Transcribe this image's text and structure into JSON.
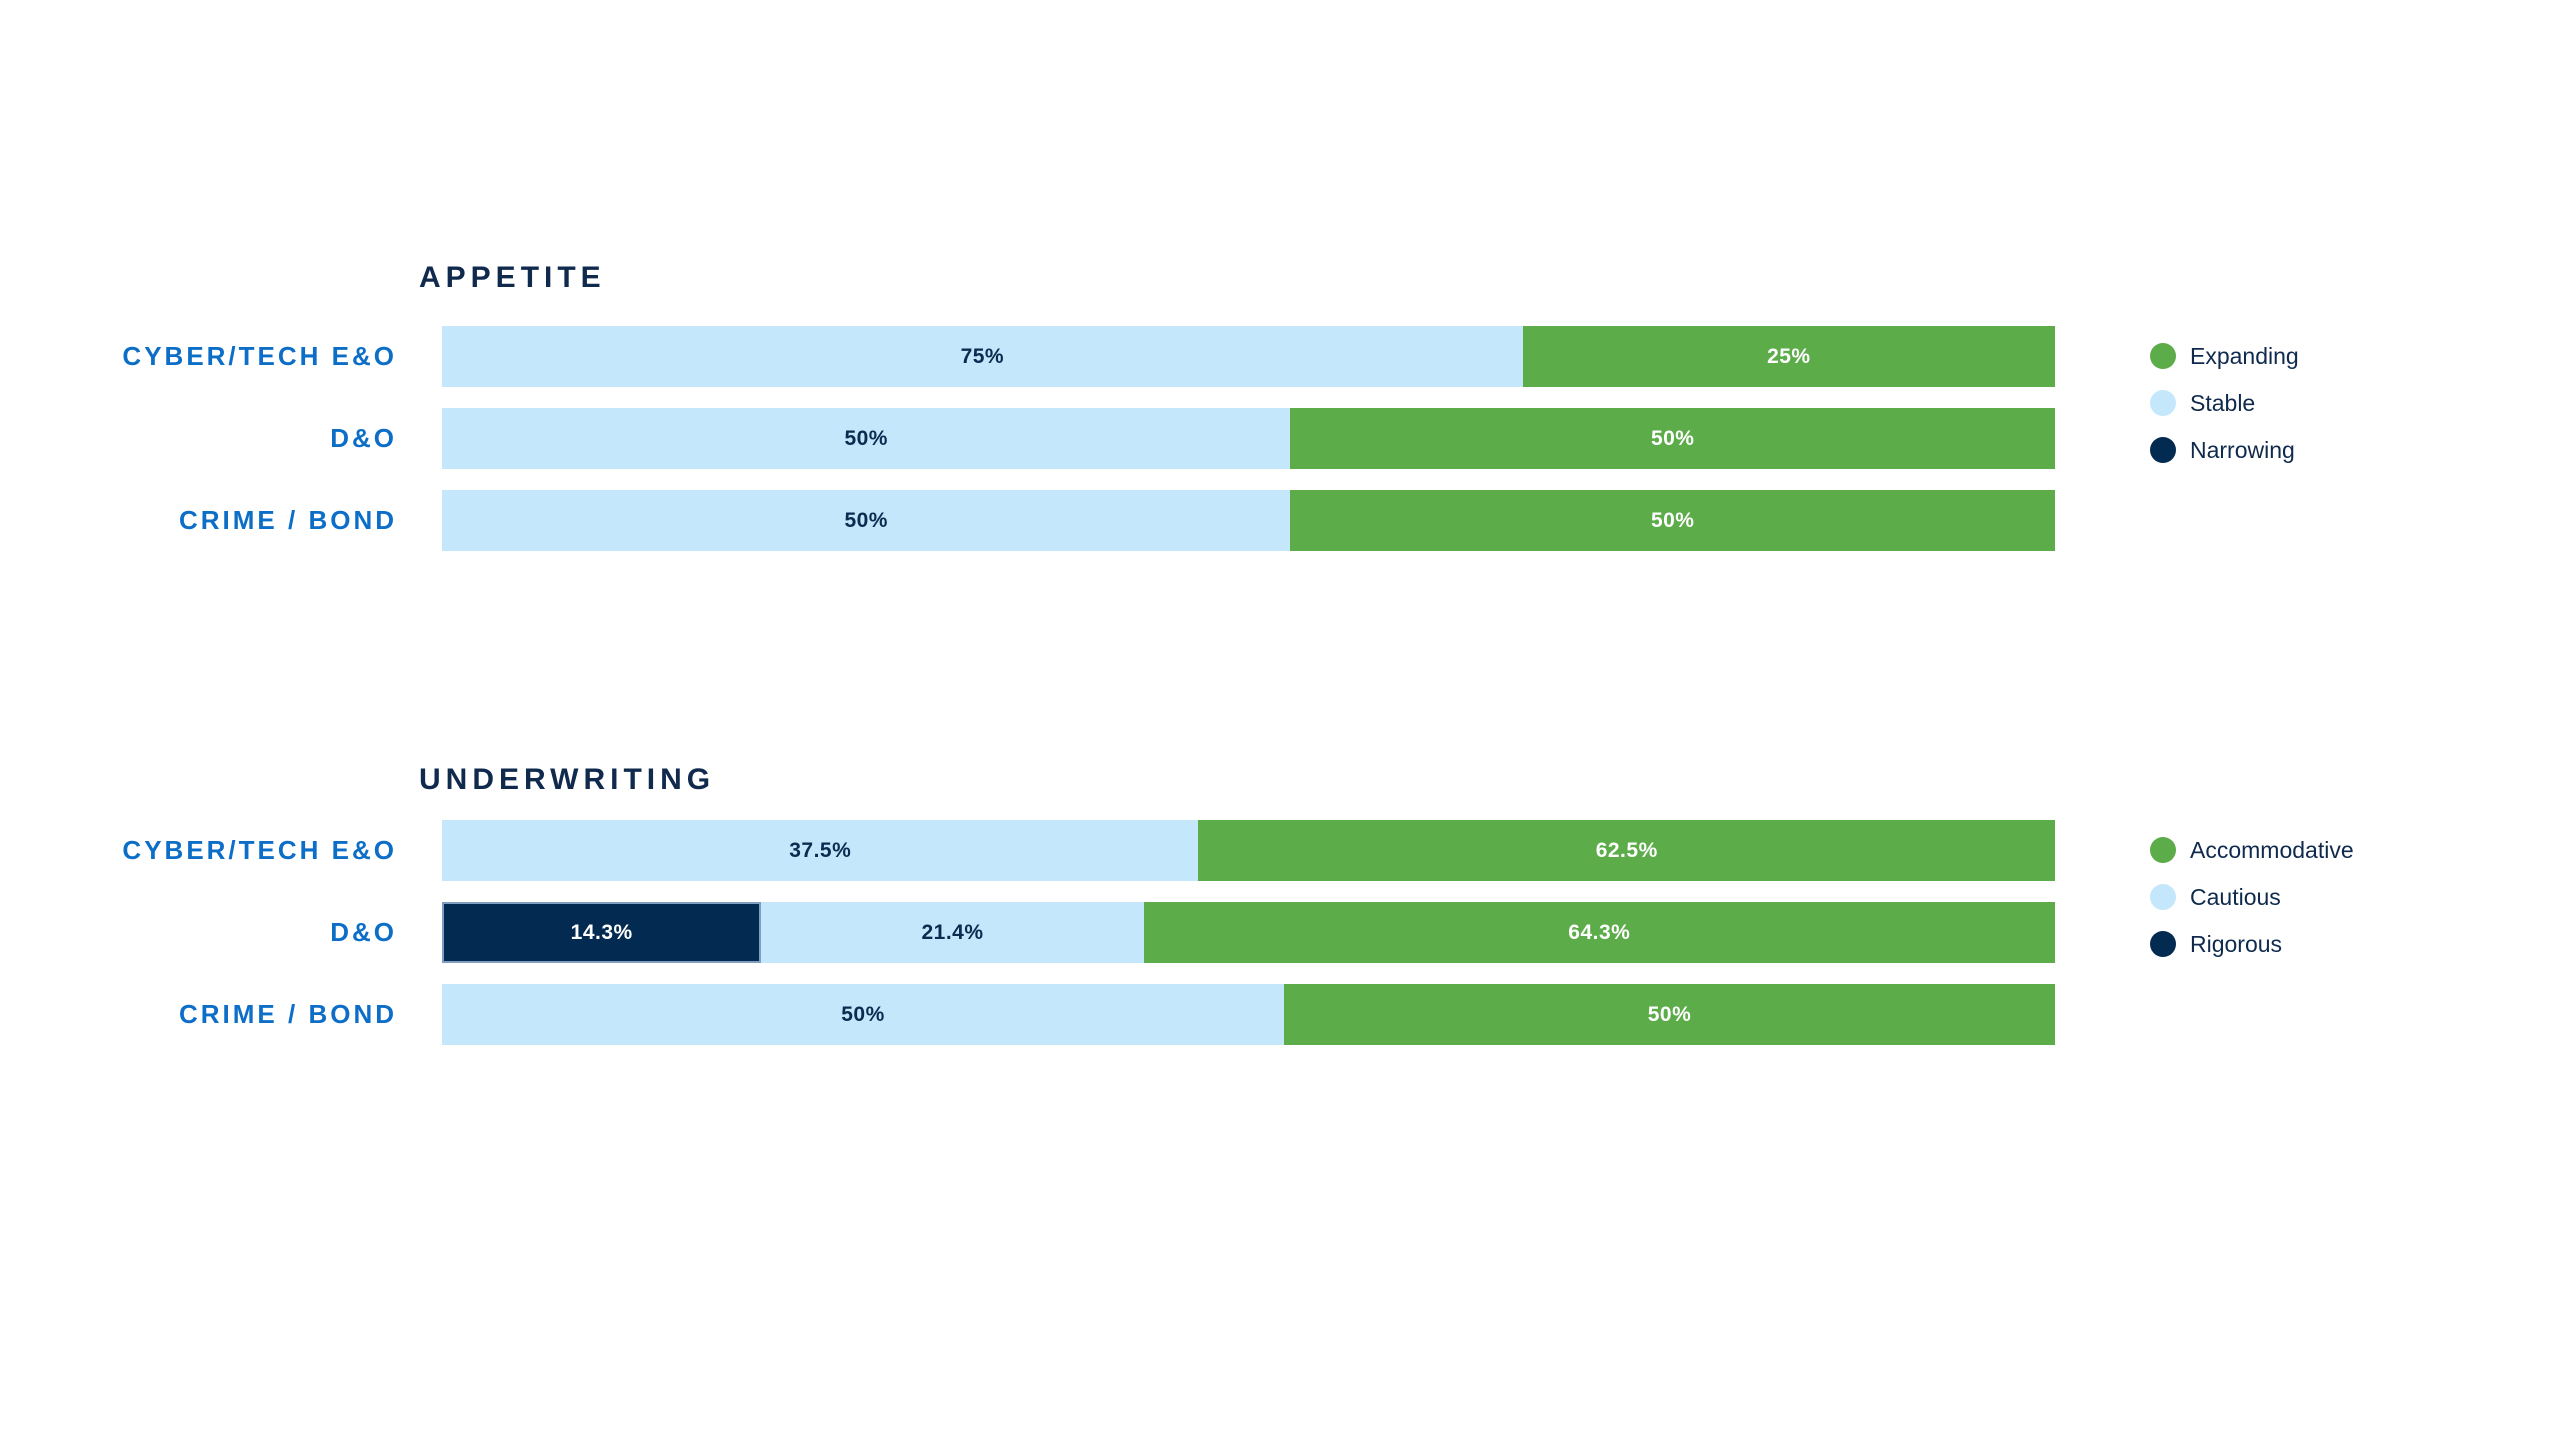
{
  "page": {
    "background": "#FFFFFF"
  },
  "colors": {
    "green": "#5CAC4A",
    "light_blue": "#C5E7FB",
    "navy": "#032A50",
    "title_text": "#102A4D",
    "category_text": "#0D6EC8",
    "legend_text": "#0F2A4D",
    "label_on_light": "#0B2B50",
    "label_on_dark": "#FFFFFF"
  },
  "chart_data": [
    {
      "type": "bar",
      "orientation": "horizontal",
      "stacked": true,
      "title": "APPETITE",
      "unit": "percent",
      "x_range": [
        0,
        100
      ],
      "grid": false,
      "axes_shown": false,
      "legend_position": "right",
      "categories": [
        "CYBER/TECH E&O",
        "D&O",
        "CRIME / BOND"
      ],
      "legend": [
        {
          "label": "Expanding",
          "color_key": "green"
        },
        {
          "label": "Stable",
          "color_key": "light_blue"
        },
        {
          "label": "Narrowing",
          "color_key": "navy"
        }
      ],
      "rows": [
        {
          "category": "CYBER/TECH E&O",
          "segments": [
            {
              "series": "Stable",
              "value": 75,
              "label": "75%",
              "color_key": "light_blue",
              "display_width_pct": 67.0
            },
            {
              "series": "Expanding",
              "value": 25,
              "label": "25%",
              "color_key": "green",
              "display_width_pct": 33.0
            }
          ]
        },
        {
          "category": "D&O",
          "segments": [
            {
              "series": "Stable",
              "value": 50,
              "label": "50%",
              "color_key": "light_blue",
              "display_width_pct": 52.6
            },
            {
              "series": "Expanding",
              "value": 50,
              "label": "50%",
              "color_key": "green",
              "display_width_pct": 47.4
            }
          ]
        },
        {
          "category": "CRIME / BOND",
          "segments": [
            {
              "series": "Stable",
              "value": 50,
              "label": "50%",
              "color_key": "light_blue",
              "display_width_pct": 52.6
            },
            {
              "series": "Expanding",
              "value": 50,
              "label": "50%",
              "color_key": "green",
              "display_width_pct": 47.4
            }
          ]
        }
      ]
    },
    {
      "type": "bar",
      "orientation": "horizontal",
      "stacked": true,
      "title": "UNDERWRITING",
      "unit": "percent",
      "x_range": [
        0,
        100
      ],
      "grid": false,
      "axes_shown": false,
      "legend_position": "right",
      "categories": [
        "CYBER/TECH E&O",
        "D&O",
        "CRIME / BOND"
      ],
      "legend": [
        {
          "label": "Accommodative",
          "color_key": "green"
        },
        {
          "label": "Cautious",
          "color_key": "light_blue"
        },
        {
          "label": "Rigorous",
          "color_key": "navy"
        }
      ],
      "rows": [
        {
          "category": "CYBER/TECH E&O",
          "segments": [
            {
              "series": "Cautious",
              "value": 37.5,
              "label": "37.5%",
              "color_key": "light_blue",
              "display_width_pct": 46.9
            },
            {
              "series": "Accommodative",
              "value": 62.5,
              "label": "62.5%",
              "color_key": "green",
              "display_width_pct": 53.1
            }
          ]
        },
        {
          "category": "D&O",
          "segments": [
            {
              "series": "Rigorous",
              "value": 14.3,
              "label": "14.3%",
              "color_key": "navy",
              "display_width_pct": 19.8
            },
            {
              "series": "Cautious",
              "value": 21.4,
              "label": "21.4%",
              "color_key": "light_blue",
              "display_width_pct": 23.7
            },
            {
              "series": "Accommodative",
              "value": 64.3,
              "label": "64.3%",
              "color_key": "green",
              "display_width_pct": 56.5
            }
          ]
        },
        {
          "category": "CRIME / BOND",
          "segments": [
            {
              "series": "Cautious",
              "value": 50,
              "label": "50%",
              "color_key": "light_blue",
              "display_width_pct": 52.2
            },
            {
              "series": "Accommodative",
              "value": 50,
              "label": "50%",
              "color_key": "green",
              "display_width_pct": 47.8
            }
          ]
        }
      ]
    }
  ]
}
